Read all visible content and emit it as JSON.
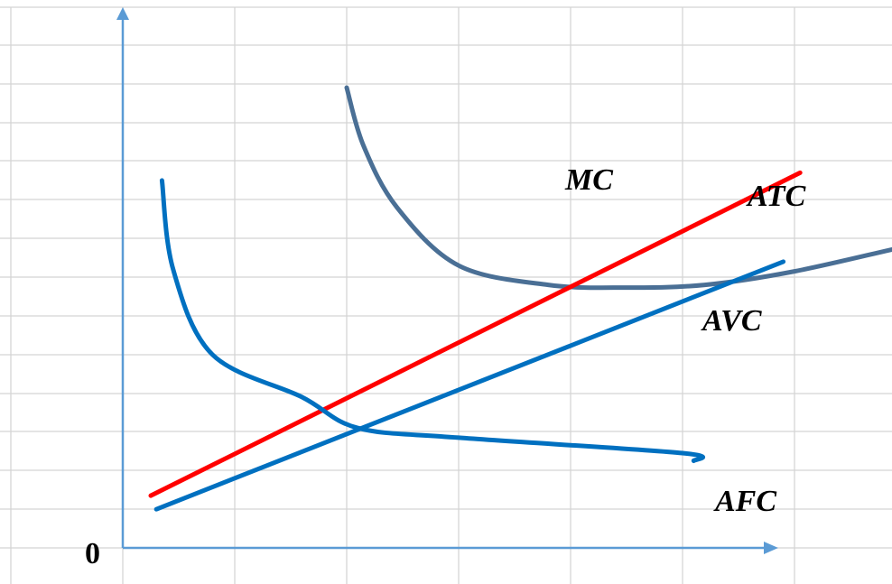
{
  "chart_data": {
    "type": "line",
    "title": "",
    "xlabel": "",
    "ylabel": "",
    "grid": true,
    "legend": "none",
    "origin_label": "0",
    "axis_color": "#5B9BD5",
    "series": [
      {
        "name": "ATC",
        "color": "#4A6F95",
        "points": [
          [
            2.0,
            11.9
          ],
          [
            2.15,
            10.4
          ],
          [
            2.45,
            8.8
          ],
          [
            3.0,
            7.3
          ],
          [
            3.8,
            6.8
          ],
          [
            4.5,
            6.73
          ],
          [
            5.2,
            6.8
          ],
          [
            6.0,
            7.15
          ],
          [
            7.0,
            7.8
          ],
          [
            7.65,
            8.2
          ]
        ]
      },
      {
        "name": "MC",
        "color": "#FF0000",
        "points": [
          [
            0.25,
            1.35
          ],
          [
            6.05,
            9.7
          ]
        ]
      },
      {
        "name": "AVC",
        "color": "#0070C0",
        "points": [
          [
            0.3,
            1.0
          ],
          [
            5.9,
            7.4
          ]
        ]
      },
      {
        "name": "AFC",
        "color": "#0070C0",
        "points": [
          [
            0.35,
            9.5
          ],
          [
            0.45,
            7.2
          ],
          [
            0.8,
            5.0
          ],
          [
            1.6,
            3.9
          ],
          [
            2.1,
            3.1
          ],
          [
            3.0,
            2.85
          ],
          [
            5.0,
            2.45
          ],
          [
            5.1,
            2.25
          ]
        ]
      }
    ]
  }
}
